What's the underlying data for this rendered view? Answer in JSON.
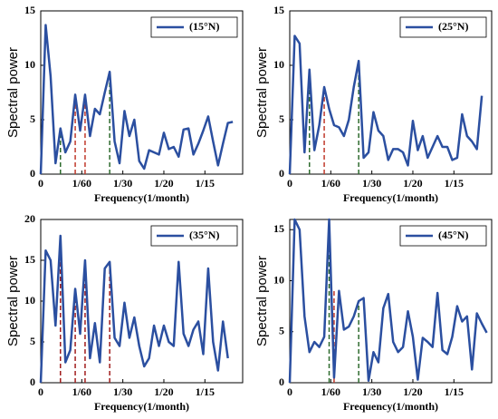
{
  "chart_data": [
    {
      "type": "line",
      "legend": "upper right",
      "xlabel": "Frequency(1/month)",
      "ylabel": "Spectral power",
      "xlim": [
        0,
        0.082
      ],
      "xticks": [
        0,
        {
          "value": 0.016667,
          "label": "1/60"
        },
        {
          "value": 0.033333,
          "label": "1/30"
        },
        {
          "value": 0.05,
          "label": "1/20"
        },
        {
          "value": 0.066667,
          "label": "1/15"
        }
      ],
      "ylim": [
        0,
        15
      ],
      "yticks": [
        0,
        5,
        10,
        15
      ],
      "series": [
        {
          "name": "(15°N)",
          "color": "#2b4fa0",
          "x": [
            0,
            0.002,
            0.004,
            0.006,
            0.008,
            0.01,
            0.012,
            0.014,
            0.016,
            0.018,
            0.02,
            0.022,
            0.024,
            0.026,
            0.028,
            0.03,
            0.032,
            0.034,
            0.036,
            0.038,
            0.04,
            0.042,
            0.044,
            0.046,
            0.048,
            0.05,
            0.052,
            0.054,
            0.056,
            0.058,
            0.06,
            0.062,
            0.064,
            0.066,
            0.068,
            0.07,
            0.072,
            0.074,
            0.076,
            0.078
          ],
          "values": [
            0,
            13.7,
            9,
            1,
            4.2,
            2,
            3,
            7.3,
            4,
            7.3,
            3.5,
            6,
            5.5,
            7.5,
            9.4,
            3,
            1,
            5.8,
            3.5,
            5,
            1.2,
            0.5,
            2.2,
            2,
            1.8,
            3.8,
            2.3,
            2.5,
            1.6,
            4.1,
            4.2,
            1.8,
            2.8,
            4,
            5.3,
            3,
            0.8,
            2.8,
            4.7,
            4.8
          ]
        }
      ],
      "reference_lines": [
        {
          "x": 0.008,
          "y": 4.2,
          "color": "#2e6b2e"
        },
        {
          "x": 0.014,
          "y": 7.3,
          "color": "#c0392b"
        },
        {
          "x": 0.018,
          "y": 7.3,
          "color": "#c0392b"
        },
        {
          "x": 0.028,
          "y": 9.4,
          "color": "#2e6b2e"
        }
      ]
    },
    {
      "type": "line",
      "legend": "upper right",
      "xlabel": "Frequency(1/month)",
      "ylabel": "Spectral power",
      "xlim": [
        0,
        0.082
      ],
      "xticks": [
        0,
        {
          "value": 0.016667,
          "label": "1/60"
        },
        {
          "value": 0.033333,
          "label": "1/30"
        },
        {
          "value": 0.05,
          "label": "1/20"
        },
        {
          "value": 0.066667,
          "label": "1/15"
        }
      ],
      "ylim": [
        0,
        15
      ],
      "yticks": [
        0,
        5,
        10,
        15
      ],
      "series": [
        {
          "name": "(25°N)",
          "color": "#2b4fa0",
          "x": [
            0,
            0.002,
            0.004,
            0.006,
            0.008,
            0.01,
            0.012,
            0.014,
            0.016,
            0.018,
            0.02,
            0.022,
            0.024,
            0.026,
            0.028,
            0.03,
            0.032,
            0.034,
            0.036,
            0.038,
            0.04,
            0.042,
            0.044,
            0.046,
            0.048,
            0.05,
            0.052,
            0.054,
            0.056,
            0.058,
            0.06,
            0.062,
            0.064,
            0.066,
            0.068,
            0.07,
            0.072,
            0.074,
            0.076,
            0.078
          ],
          "values": [
            0,
            12.7,
            12,
            2,
            9.6,
            2.2,
            4.5,
            8,
            6,
            4.5,
            4.3,
            3.5,
            5,
            8,
            10.4,
            1.5,
            2,
            5.7,
            4,
            3.5,
            1.3,
            2.3,
            2.3,
            2,
            0.8,
            4.9,
            2.2,
            3.5,
            1.5,
            2.5,
            3.5,
            2.5,
            2.5,
            1.3,
            1.5,
            5.5,
            3.5,
            3,
            2.3,
            7.2
          ]
        }
      ],
      "reference_lines": [
        {
          "x": 0.008,
          "y": 9.6,
          "color": "#2e6b2e"
        },
        {
          "x": 0.014,
          "y": 8,
          "color": "#c0392b"
        },
        {
          "x": 0.028,
          "y": 10.4,
          "color": "#2e6b2e"
        }
      ]
    },
    {
      "type": "line",
      "legend": "upper right",
      "xlabel": "Frequency(1/month)",
      "ylabel": "Spectral power",
      "xlim": [
        0,
        0.082
      ],
      "xticks": [
        0,
        {
          "value": 0.016667,
          "label": "1/60"
        },
        {
          "value": 0.033333,
          "label": "1/30"
        },
        {
          "value": 0.05,
          "label": "1/20"
        },
        {
          "value": 0.066667,
          "label": "1/15"
        }
      ],
      "ylim": [
        0,
        20
      ],
      "yticks": [
        0,
        5,
        10,
        15,
        20
      ],
      "series": [
        {
          "name": "(35°N)",
          "color": "#2b4fa0",
          "x": [
            0,
            0.002,
            0.004,
            0.006,
            0.008,
            0.01,
            0.012,
            0.014,
            0.016,
            0.018,
            0.02,
            0.022,
            0.024,
            0.026,
            0.028,
            0.03,
            0.032,
            0.034,
            0.036,
            0.038,
            0.04,
            0.042,
            0.044,
            0.046,
            0.048,
            0.05,
            0.052,
            0.054,
            0.056,
            0.058,
            0.06,
            0.062,
            0.064,
            0.066,
            0.068,
            0.07,
            0.072,
            0.074,
            0.076
          ],
          "values": [
            0,
            16.2,
            15,
            7,
            18,
            2.5,
            4,
            11.5,
            6,
            15,
            3,
            7.3,
            2.5,
            14,
            14.8,
            5.5,
            4.5,
            9.8,
            5.5,
            8,
            4.5,
            2,
            3,
            7,
            4.5,
            7,
            5,
            4.5,
            14.8,
            6,
            4.5,
            6.5,
            7.5,
            3.5,
            14,
            5,
            1.5,
            7.5,
            3
          ]
        }
      ],
      "reference_lines": [
        {
          "x": 0.008,
          "y": 18,
          "color": "#a11d1d"
        },
        {
          "x": 0.014,
          "y": 11.5,
          "color": "#a11d1d"
        },
        {
          "x": 0.018,
          "y": 15,
          "color": "#a11d1d"
        },
        {
          "x": 0.028,
          "y": 14.8,
          "color": "#a11d1d"
        }
      ]
    },
    {
      "type": "line",
      "legend": "upper right",
      "xlabel": "Frequency(1/month)",
      "ylabel": "Spectral power",
      "xlim": [
        0,
        0.082
      ],
      "xticks": [
        0,
        {
          "value": 0.016667,
          "label": "1/60"
        },
        {
          "value": 0.033333,
          "label": "1/30"
        },
        {
          "value": 0.05,
          "label": "1/20"
        },
        {
          "value": 0.066667,
          "label": "1/15"
        }
      ],
      "ylim": [
        0,
        16
      ],
      "yticks": [
        0,
        5,
        10,
        15
      ],
      "series": [
        {
          "name": "(45°N)",
          "color": "#2b4fa0",
          "x": [
            0,
            0.002,
            0.004,
            0.006,
            0.008,
            0.01,
            0.012,
            0.014,
            0.016,
            0.018,
            0.02,
            0.022,
            0.024,
            0.026,
            0.028,
            0.03,
            0.032,
            0.034,
            0.036,
            0.038,
            0.04,
            0.042,
            0.044,
            0.046,
            0.048,
            0.05,
            0.052,
            0.054,
            0.056,
            0.058,
            0.06,
            0.062,
            0.064,
            0.066,
            0.068,
            0.07,
            0.072,
            0.074,
            0.076,
            0.078,
            0.08
          ],
          "values": [
            0,
            16,
            15,
            6.5,
            3,
            4,
            3.5,
            4.5,
            16,
            0.5,
            9,
            5.2,
            5.5,
            6.5,
            8,
            8.3,
            0.2,
            3,
            2,
            7.3,
            8.7,
            4,
            3,
            3.5,
            7,
            4.5,
            0.3,
            4.4,
            4,
            3.5,
            8.8,
            3.2,
            2.8,
            4.5,
            7.5,
            6,
            6.5,
            1.3,
            6.8,
            5.8,
            4.9
          ]
        }
      ],
      "reference_lines": [
        {
          "x": 0.016,
          "y": 16,
          "color": "#2e6b2e"
        },
        {
          "x": 0.018,
          "y": 9,
          "color": "#c0392b"
        },
        {
          "x": 0.028,
          "y": 8,
          "color": "#2e6b2e"
        }
      ]
    }
  ]
}
